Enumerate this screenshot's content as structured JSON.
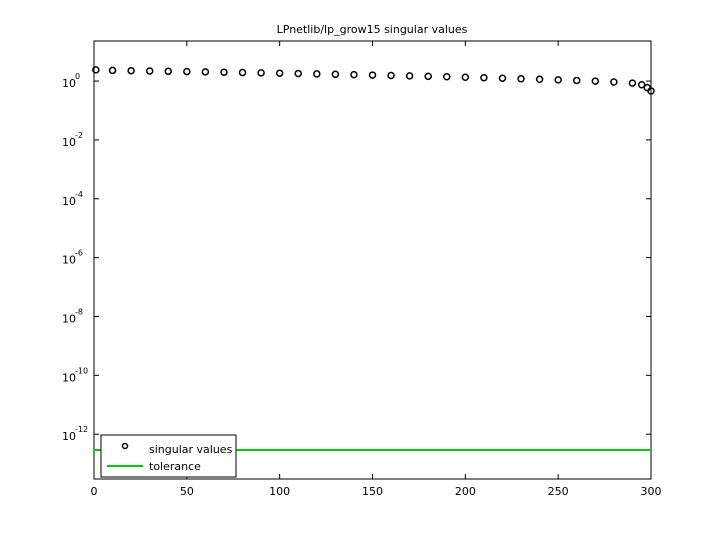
{
  "chart_data": {
    "type": "scatter",
    "title": "LPnetlib/lp_grow15 singular values",
    "log_y": true,
    "xlim": [
      0,
      300
    ],
    "xticks": [
      0,
      50,
      100,
      150,
      200,
      250,
      300
    ],
    "ylim": [
      3e-14,
      23
    ],
    "yticks": [
      {
        "value": 1,
        "label": "10",
        "exponent": "0"
      },
      {
        "value": 0.01,
        "label": "10",
        "exponent": "-2"
      },
      {
        "value": 0.0001,
        "label": "10",
        "exponent": "-4"
      },
      {
        "value": 1e-06,
        "label": "10",
        "exponent": "-6"
      },
      {
        "value": 1e-08,
        "label": "10",
        "exponent": "-8"
      },
      {
        "value": 1e-10,
        "label": "10",
        "exponent": "-10"
      },
      {
        "value": 1e-12,
        "label": "10",
        "exponent": "-12"
      }
    ],
    "legend": "lower left",
    "series": [
      {
        "name": "singular values",
        "color": "#000000",
        "marker": "circle",
        "x": [
          1,
          10,
          20,
          30,
          40,
          50,
          60,
          70,
          80,
          90,
          100,
          110,
          120,
          130,
          140,
          150,
          160,
          170,
          180,
          190,
          200,
          210,
          220,
          230,
          240,
          250,
          260,
          270,
          280,
          290,
          295,
          298,
          300
        ],
        "values": [
          2.4,
          2.3,
          2.25,
          2.2,
          2.15,
          2.1,
          2.05,
          2.0,
          1.95,
          1.9,
          1.85,
          1.8,
          1.75,
          1.7,
          1.65,
          1.6,
          1.55,
          1.5,
          1.45,
          1.4,
          1.35,
          1.3,
          1.25,
          1.2,
          1.15,
          1.1,
          1.05,
          1.0,
          0.93,
          0.85,
          0.75,
          0.6,
          0.46
        ]
      },
      {
        "name": "tolerance",
        "color": "#00cc00",
        "marker": "line",
        "x": [
          0,
          300
        ],
        "values": [
          2.9e-13,
          2.9e-13
        ]
      }
    ]
  }
}
